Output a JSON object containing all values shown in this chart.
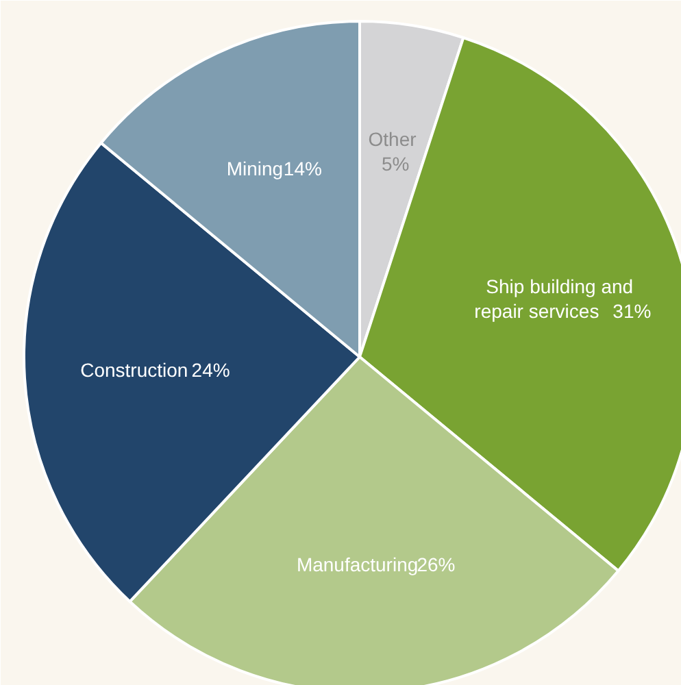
{
  "chart_data": {
    "type": "pie",
    "categories": [
      "Other",
      "Ship building and repair services",
      "Manufacturing",
      "Construction",
      "Mining"
    ],
    "values": [
      5,
      31,
      26,
      24,
      14
    ],
    "colors": [
      "#d4d4d6",
      "#79a332",
      "#b3c98b",
      "#22456b",
      "#7f9db0"
    ],
    "value_labels": [
      "5%",
      "31%",
      "26%",
      "24%",
      "14%"
    ]
  }
}
